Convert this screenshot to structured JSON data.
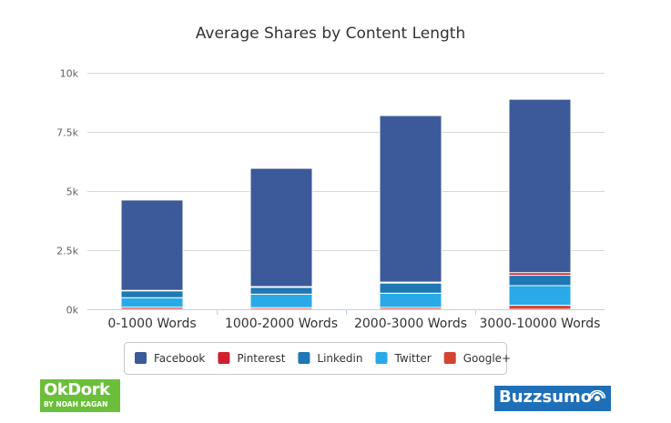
{
  "chart_data": {
    "type": "bar",
    "stacked": true,
    "title": "Average Shares by Content Length",
    "xlabel": "",
    "ylabel": "",
    "categories": [
      "0-1000 Words",
      "1000-2000 Words",
      "2000-3000 Words",
      "3000-10000 Words"
    ],
    "ylim": [
      0,
      10000
    ],
    "yticks": [
      {
        "value": 0,
        "label": "0k"
      },
      {
        "value": 2500,
        "label": "2.5k"
      },
      {
        "value": 5000,
        "label": "5k"
      },
      {
        "value": 7500,
        "label": "7.5k"
      },
      {
        "value": 10000,
        "label": "10k"
      }
    ],
    "grid": true,
    "legend_position": "bottom",
    "series": [
      {
        "name": "Google+",
        "color": "#d24433",
        "values": [
          90,
          70,
          80,
          170
        ]
      },
      {
        "name": "Twitter",
        "color": "#2aa9e8",
        "values": [
          400,
          570,
          600,
          830
        ]
      },
      {
        "name": "Linkedin",
        "color": "#1f77b4",
        "values": [
          290,
          290,
          430,
          440
        ]
      },
      {
        "name": "Pinterest",
        "color": "#d0202e",
        "values": [
          20,
          30,
          40,
          110
        ]
      },
      {
        "name": "Facebook",
        "color": "#3c5a99",
        "values": [
          3820,
          5000,
          7040,
          7330
        ]
      }
    ],
    "legend_order": [
      "Facebook",
      "Pinterest",
      "Linkedin",
      "Twitter",
      "Google+"
    ]
  },
  "logos": {
    "okdork_main": "OkDork",
    "okdork_sub": "BY NOAH KAGAN",
    "buzzsumo": "Buzzsumo"
  },
  "colors": {
    "okdork_bg": "#6bbf3a",
    "buzzsumo_bg": "#1e6fb8"
  }
}
